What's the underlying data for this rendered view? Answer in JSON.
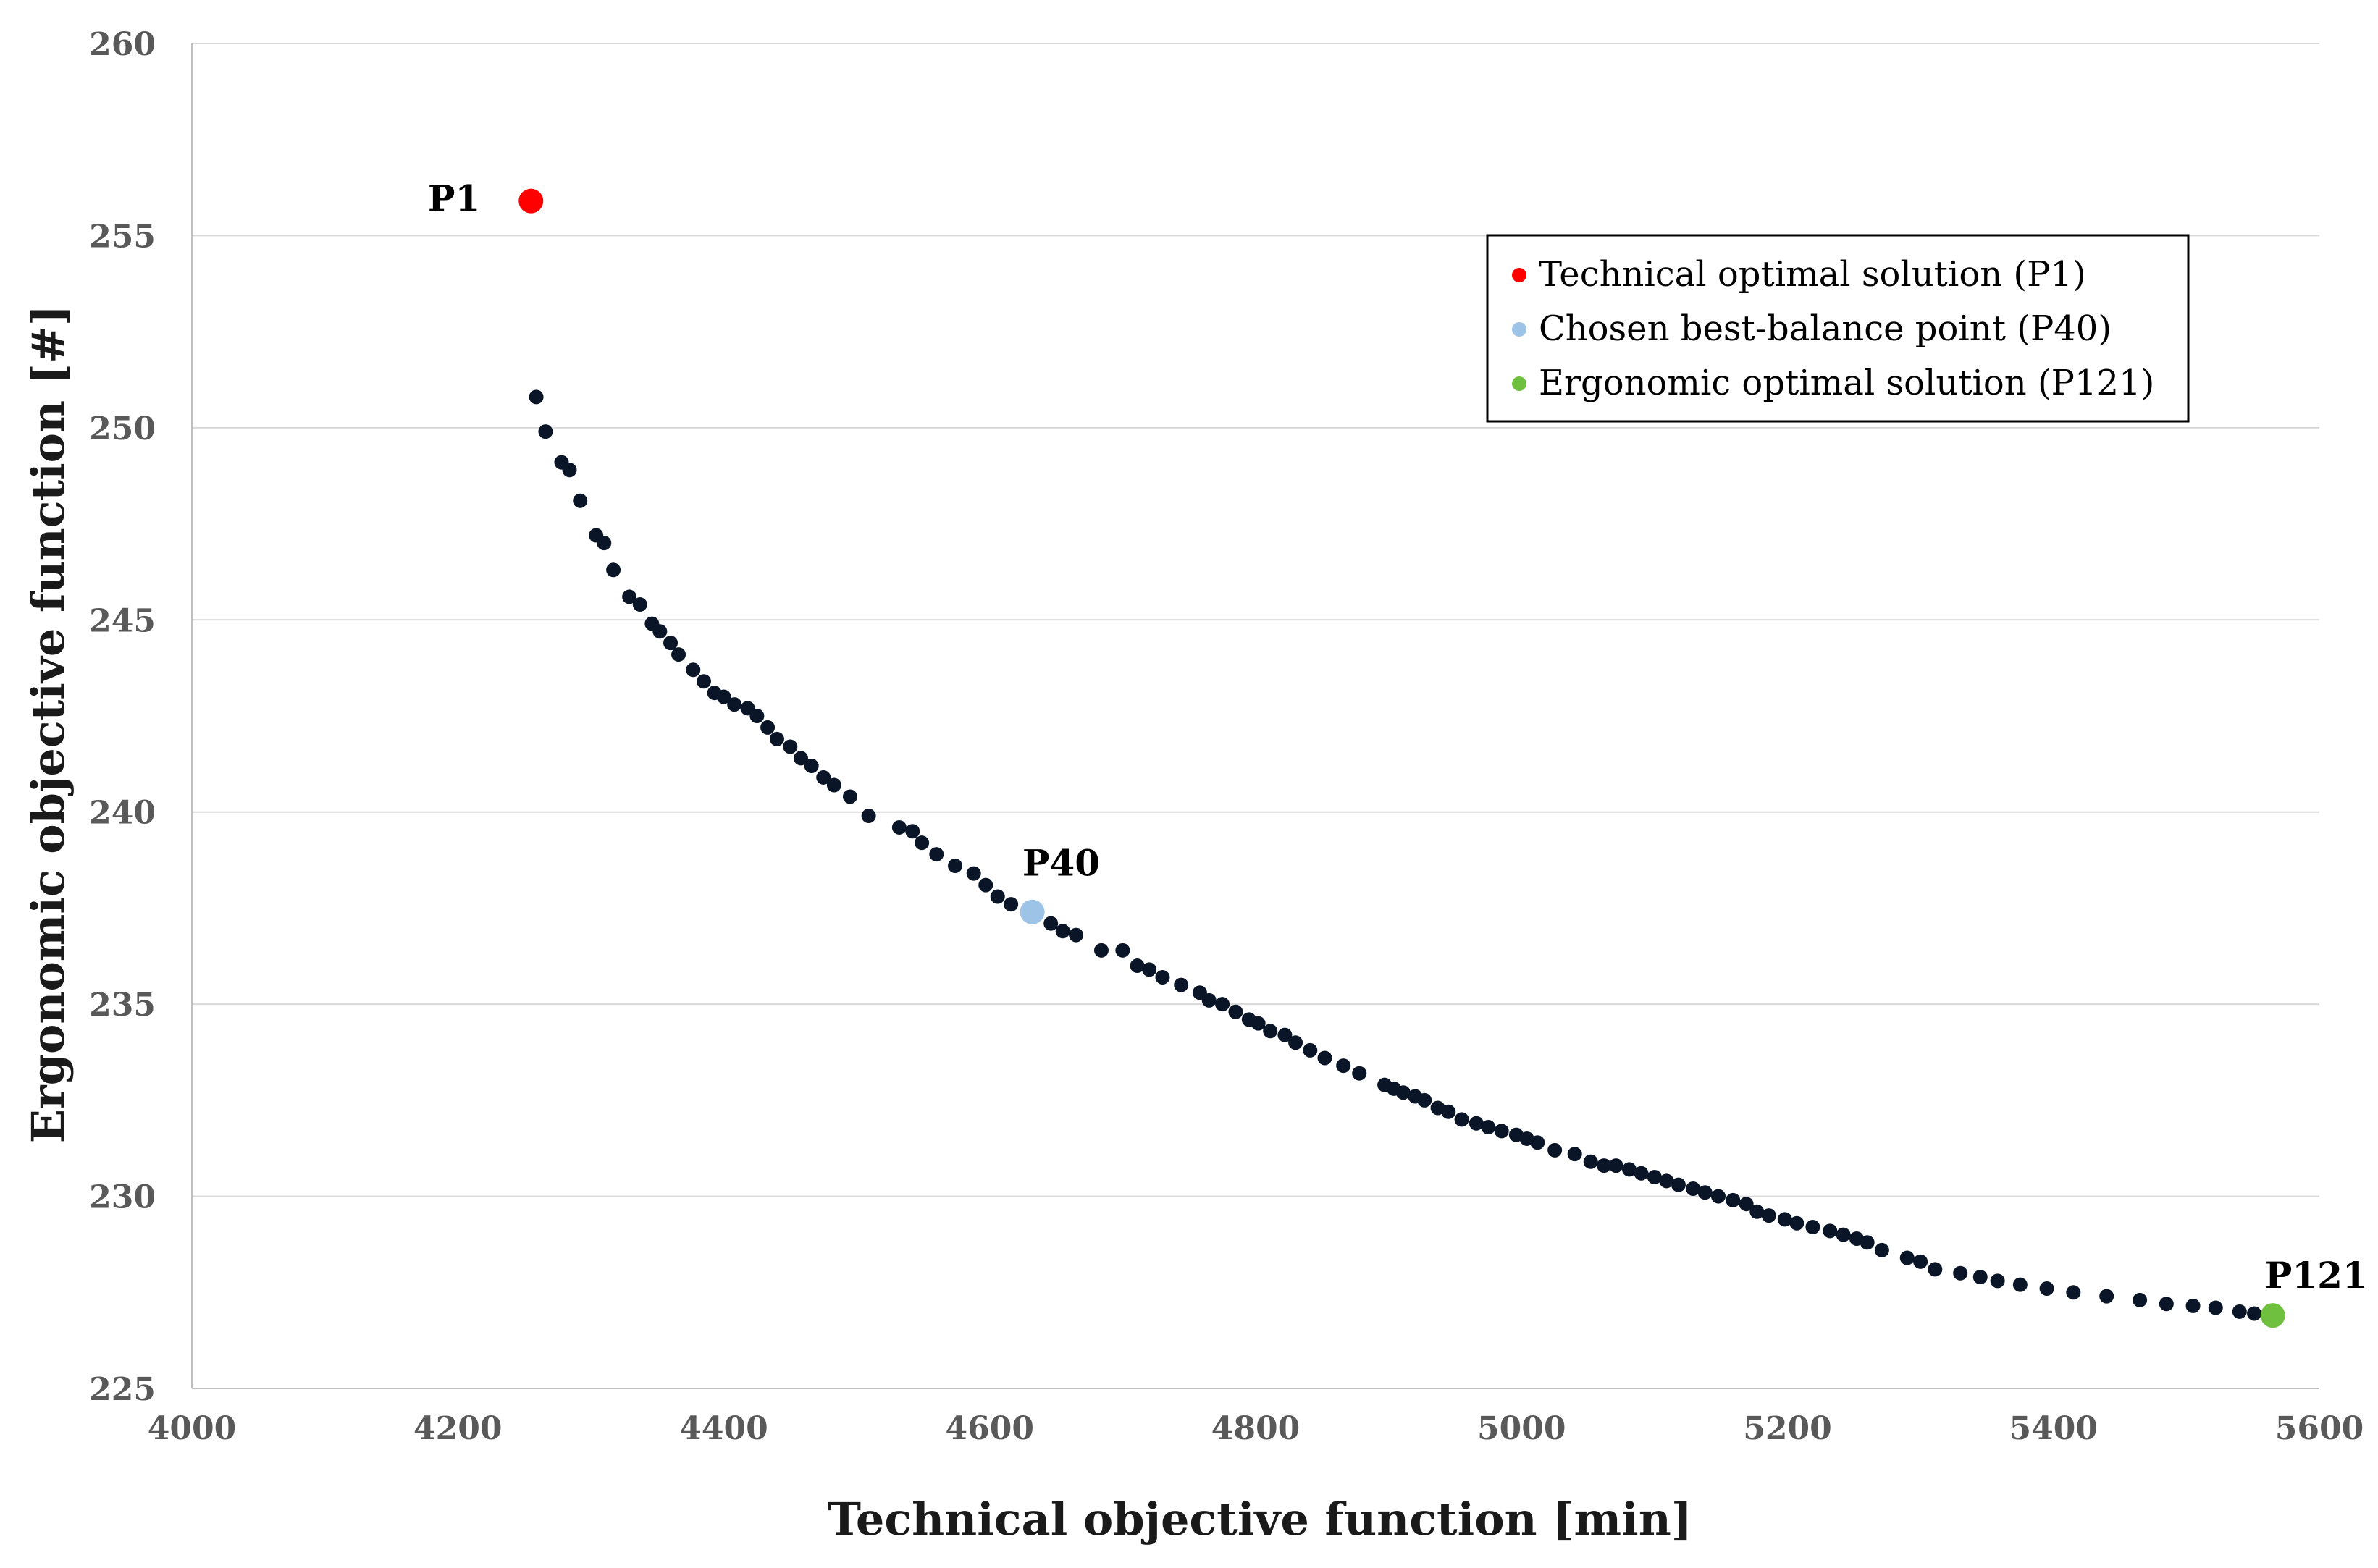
{
  "chart_data": {
    "type": "scatter",
    "title": "",
    "xlabel": "Technical objective function [min]",
    "ylabel": "Ergonomic objective function [#]",
    "xlim": [
      4000,
      5600
    ],
    "ylim": [
      225,
      260
    ],
    "x_ticks": [
      4000,
      4200,
      4400,
      4600,
      4800,
      5000,
      5200,
      5400,
      5600
    ],
    "y_ticks": [
      225,
      230,
      235,
      240,
      245,
      250,
      255,
      260
    ],
    "grid": "horizontal",
    "legend_position": "top-right",
    "colors": {
      "front": "#0a1628",
      "p1": "#ff0000",
      "p40": "#9dc3e6",
      "p121": "#70c040",
      "grid": "#d9d9d9",
      "axis": "#bfbfbf"
    },
    "highlight_series": [
      {
        "key": "p1",
        "name": "Technical optimal solution (P1)",
        "label": "P1",
        "x": 4255,
        "y": 255.9
      },
      {
        "key": "p40",
        "name": "Chosen best-balance point (P40)",
        "label": "P40",
        "x": 4632,
        "y": 237.4
      },
      {
        "key": "p121",
        "name": "Ergonomic optimal solution (P121)",
        "label": "P121",
        "x": 5565,
        "y": 226.9
      }
    ],
    "front_series": {
      "name": "Pareto front",
      "points": [
        [
          4259,
          250.8
        ],
        [
          4266,
          249.9
        ],
        [
          4278,
          249.1
        ],
        [
          4284,
          248.9
        ],
        [
          4292,
          248.1
        ],
        [
          4304,
          247.2
        ],
        [
          4310,
          247.0
        ],
        [
          4317,
          246.3
        ],
        [
          4329,
          245.6
        ],
        [
          4337,
          245.4
        ],
        [
          4346,
          244.9
        ],
        [
          4352,
          244.7
        ],
        [
          4360,
          244.4
        ],
        [
          4366,
          244.1
        ],
        [
          4377,
          243.7
        ],
        [
          4385,
          243.4
        ],
        [
          4393,
          243.1
        ],
        [
          4400,
          243.0
        ],
        [
          4408,
          242.8
        ],
        [
          4418,
          242.7
        ],
        [
          4425,
          242.5
        ],
        [
          4433,
          242.2
        ],
        [
          4440,
          241.9
        ],
        [
          4450,
          241.7
        ],
        [
          4458,
          241.4
        ],
        [
          4466,
          241.2
        ],
        [
          4475,
          240.9
        ],
        [
          4483,
          240.7
        ],
        [
          4495,
          240.4
        ],
        [
          4509,
          239.9
        ],
        [
          4532,
          239.6
        ],
        [
          4542,
          239.5
        ],
        [
          4549,
          239.2
        ],
        [
          4560,
          238.9
        ],
        [
          4574,
          238.6
        ],
        [
          4588,
          238.4
        ],
        [
          4597,
          238.1
        ],
        [
          4606,
          237.8
        ],
        [
          4616,
          237.6
        ],
        [
          4646,
          237.1
        ],
        [
          4655,
          236.9
        ],
        [
          4665,
          236.8
        ],
        [
          4684,
          236.4
        ],
        [
          4700,
          236.4
        ],
        [
          4711,
          236.0
        ],
        [
          4720,
          235.9
        ],
        [
          4730,
          235.7
        ],
        [
          4744,
          235.5
        ],
        [
          4758,
          235.3
        ],
        [
          4765,
          235.1
        ],
        [
          4775,
          235.0
        ],
        [
          4785,
          234.8
        ],
        [
          4795,
          234.6
        ],
        [
          4802,
          234.5
        ],
        [
          4811,
          234.3
        ],
        [
          4822,
          234.2
        ],
        [
          4830,
          234.0
        ],
        [
          4841,
          233.8
        ],
        [
          4852,
          233.6
        ],
        [
          4866,
          233.4
        ],
        [
          4878,
          233.2
        ],
        [
          4897,
          232.9
        ],
        [
          4904,
          232.8
        ],
        [
          4911,
          232.7
        ],
        [
          4920,
          232.6
        ],
        [
          4927,
          232.5
        ],
        [
          4937,
          232.3
        ],
        [
          4945,
          232.2
        ],
        [
          4955,
          232.0
        ],
        [
          4966,
          231.9
        ],
        [
          4975,
          231.8
        ],
        [
          4985,
          231.7
        ],
        [
          4996,
          231.6
        ],
        [
          5004,
          231.5
        ],
        [
          5012,
          231.4
        ],
        [
          5025,
          231.2
        ],
        [
          5040,
          231.1
        ],
        [
          5052,
          230.9
        ],
        [
          5062,
          230.8
        ],
        [
          5071,
          230.8
        ],
        [
          5081,
          230.7
        ],
        [
          5090,
          230.6
        ],
        [
          5100,
          230.5
        ],
        [
          5109,
          230.4
        ],
        [
          5118,
          230.3
        ],
        [
          5129,
          230.2
        ],
        [
          5138,
          230.1
        ],
        [
          5148,
          230.0
        ],
        [
          5159,
          229.9
        ],
        [
          5169,
          229.8
        ],
        [
          5177,
          229.6
        ],
        [
          5186,
          229.5
        ],
        [
          5198,
          229.4
        ],
        [
          5207,
          229.3
        ],
        [
          5219,
          229.2
        ],
        [
          5232,
          229.1
        ],
        [
          5242,
          229.0
        ],
        [
          5252,
          228.9
        ],
        [
          5260,
          228.8
        ],
        [
          5271,
          228.6
        ],
        [
          5290,
          228.4
        ],
        [
          5300,
          228.3
        ],
        [
          5311,
          228.1
        ],
        [
          5330,
          228.0
        ],
        [
          5345,
          227.9
        ],
        [
          5358,
          227.8
        ],
        [
          5375,
          227.7
        ],
        [
          5395,
          227.6
        ],
        [
          5415,
          227.5
        ],
        [
          5440,
          227.4
        ],
        [
          5465,
          227.3
        ],
        [
          5485,
          227.2
        ],
        [
          5505,
          227.15
        ],
        [
          5522,
          227.1
        ],
        [
          5540,
          227.0
        ],
        [
          5551,
          226.95
        ]
      ]
    }
  }
}
